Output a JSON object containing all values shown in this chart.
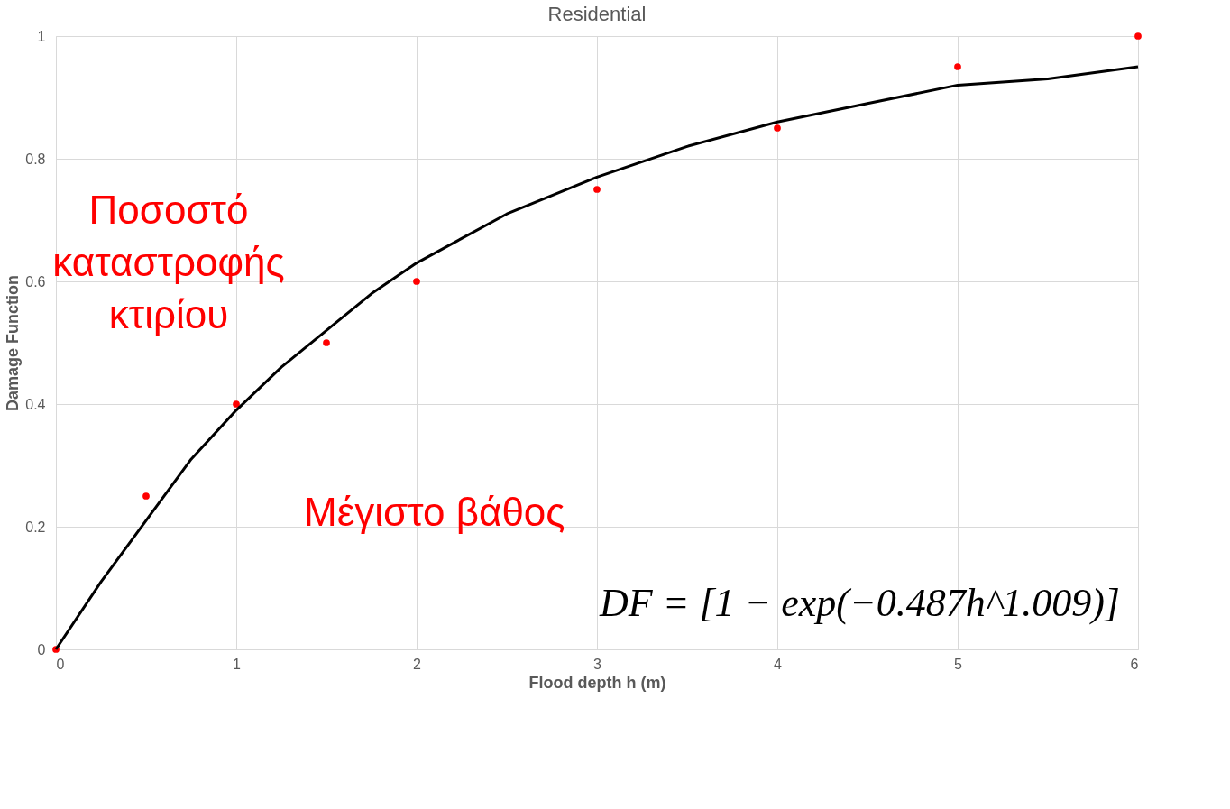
{
  "chart_data": {
    "type": "scatter",
    "title": "Residential",
    "xlabel": "Flood depth h (m)",
    "ylabel": "Damage Function",
    "series": [
      {
        "color": "#ff0000",
        "marker": "circle",
        "x": [
          0,
          0.5,
          1,
          1.5,
          2,
          3,
          4,
          5,
          6
        ],
        "values": [
          0,
          0.25,
          0.4,
          0.5,
          0.6,
          0.75,
          0.85,
          0.95,
          1.0
        ]
      },
      {
        "type": "line",
        "color": "#000000",
        "marker": "none",
        "x": [
          0,
          0.25,
          0.5,
          0.75,
          1,
          1.25,
          1.5,
          1.75,
          2,
          2.5,
          3,
          3.5,
          4,
          4.5,
          5,
          5.5,
          6
        ],
        "values": [
          0,
          0.11,
          0.21,
          0.31,
          0.39,
          0.46,
          0.52,
          0.58,
          0.63,
          0.71,
          0.77,
          0.82,
          0.86,
          0.89,
          0.92,
          0.93,
          0.95
        ]
      }
    ],
    "xlim": [
      0,
      6
    ],
    "xticks": [
      0,
      1,
      2,
      3,
      4,
      5,
      6
    ],
    "ylim": [
      0,
      1
    ],
    "yticks": [
      0,
      0.2,
      0.4,
      0.6,
      0.8,
      1
    ],
    "grid": true,
    "annotations": [
      {
        "text": "Ποσοστό\nκαταστροφής\nκτιρίου",
        "x": 1.25,
        "y": 0.46
      },
      "Μέγιστο βάθος",
      "DF = [1 − exp(−0.487h^1.009)]"
    ]
  }
}
